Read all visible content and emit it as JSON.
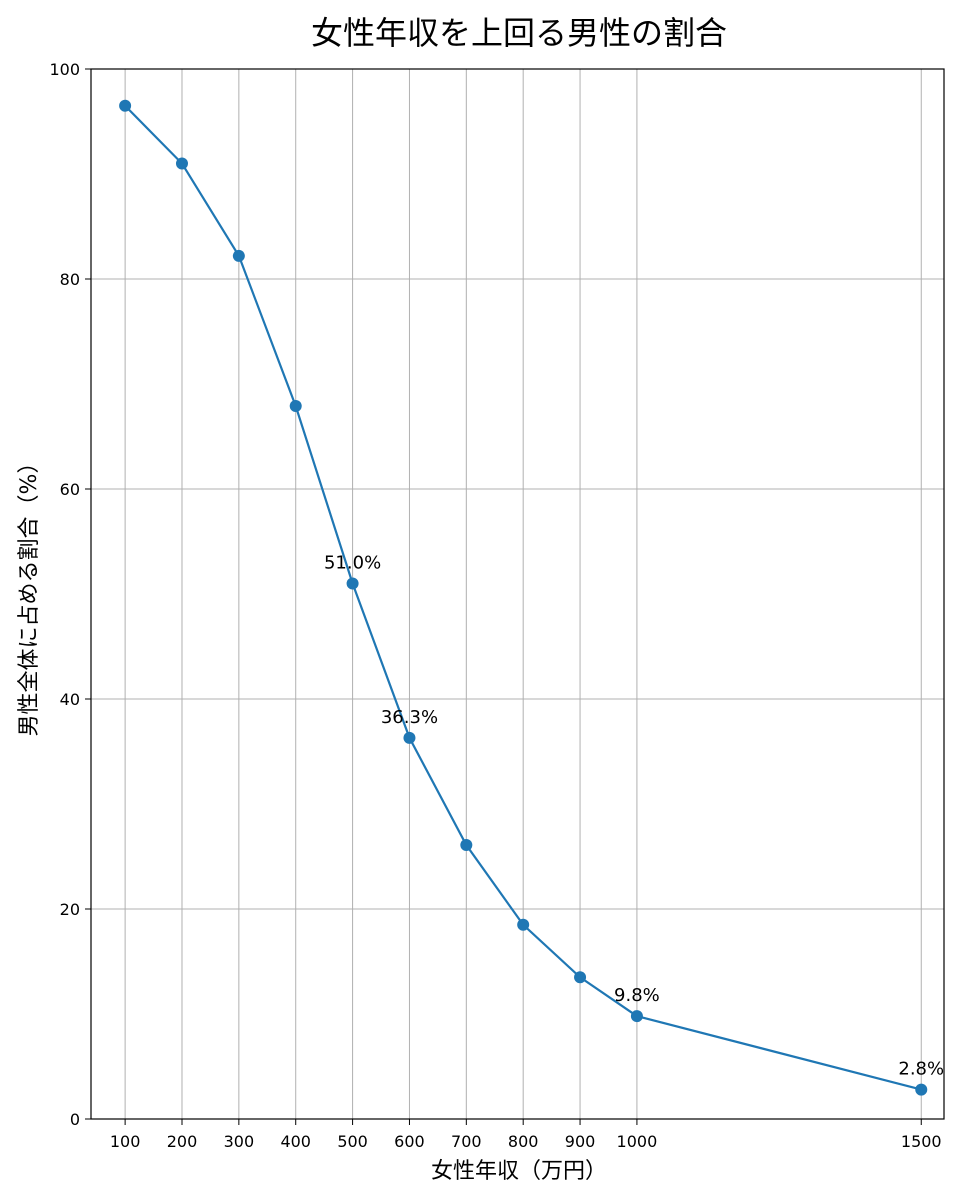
{
  "chart_data": {
    "type": "line",
    "title": "女性年収を上回る男性の割合",
    "xlabel": "女性年収（万円）",
    "ylabel": "男性全体に占める割合（%）",
    "x": [
      100,
      200,
      300,
      400,
      500,
      600,
      700,
      800,
      900,
      1000,
      1500
    ],
    "x_tick_labels": [
      "100",
      "200",
      "300",
      "400",
      "500",
      "600",
      "700",
      "800",
      "900",
      "1000",
      "1500"
    ],
    "y_ticks": [
      0,
      20,
      40,
      60,
      80,
      100
    ],
    "y_tick_labels": [
      "0",
      "20",
      "40",
      "60",
      "80",
      "100"
    ],
    "xlim": [
      40,
      1540
    ],
    "ylim": [
      0,
      100
    ],
    "grid": true,
    "series": [
      {
        "values": [
          96.5,
          91.0,
          82.2,
          67.9,
          51.0,
          36.3,
          26.1,
          18.5,
          13.5,
          9.8,
          2.8
        ],
        "color": "#1f77b4",
        "marker": "circle"
      }
    ],
    "annotations": [
      {
        "x": 500,
        "y": 51.0,
        "text": "51.0%"
      },
      {
        "x": 600,
        "y": 36.3,
        "text": "36.3%"
      },
      {
        "x": 1000,
        "y": 9.8,
        "text": "9.8%"
      },
      {
        "x": 1500,
        "y": 2.8,
        "text": "2.8%"
      }
    ]
  }
}
